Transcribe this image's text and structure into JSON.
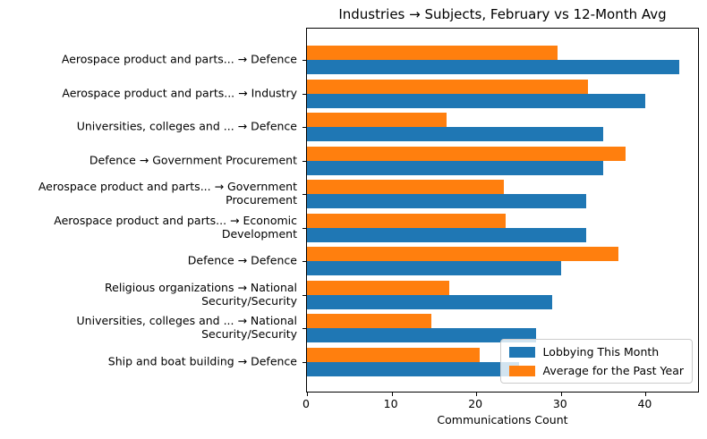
{
  "chart_data": {
    "type": "bar",
    "orientation": "horizontal",
    "title": "Industries → Subjects, February vs 12-Month Avg",
    "xlabel": "Communications Count",
    "categories": [
      "Aerospace product and parts... → Defence",
      "Aerospace product and parts... → Industry",
      "Universities, colleges and ... → Defence",
      "Defence → Government Procurement",
      "Aerospace product and parts... → Government\nProcurement",
      "Aerospace product and parts... → Economic\nDevelopment",
      "Defence → Defence",
      "Religious organizations → National\nSecurity/Security",
      "Universities, colleges and ... → National\nSecurity/Security",
      "Ship and boat building → Defence"
    ],
    "series": [
      {
        "name": "Lobbying This Month",
        "color": "#1f77b4",
        "values": [
          44,
          40,
          35,
          35,
          33,
          33,
          30,
          29,
          27,
          25
        ]
      },
      {
        "name": "Average for the Past Year",
        "color": "#ff7f0e",
        "values": [
          29.6,
          33.2,
          16.5,
          37.6,
          23.3,
          23.5,
          36.8,
          16.8,
          14.7,
          20.4
        ]
      }
    ],
    "xlim": [
      0,
      46.4
    ],
    "xticks": [
      0,
      10,
      20,
      30,
      40
    ],
    "legend_position": "lower right",
    "grid": false,
    "axis_color": "#000000",
    "background_color": "#ffffff"
  }
}
